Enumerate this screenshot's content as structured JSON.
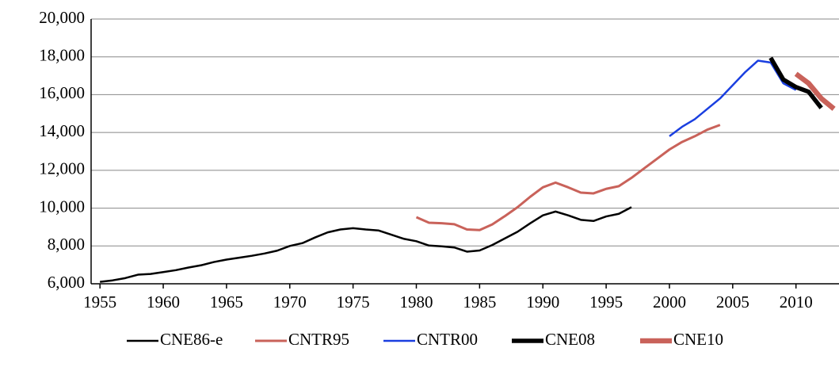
{
  "chart_data": {
    "type": "line",
    "x": [
      1955,
      1956,
      1957,
      1958,
      1959,
      1960,
      1961,
      1962,
      1963,
      1964,
      1965,
      1966,
      1967,
      1968,
      1969,
      1970,
      1971,
      1972,
      1973,
      1974,
      1975,
      1976,
      1977,
      1978,
      1979,
      1980,
      1981,
      1982,
      1983,
      1984,
      1985,
      1986,
      1987,
      1988,
      1989,
      1990,
      1991,
      1992,
      1993,
      1994,
      1995,
      1996,
      1997,
      1998,
      1999,
      2000,
      2001,
      2002,
      2003,
      2004,
      2005,
      2006,
      2007,
      2008,
      2009,
      2010,
      2011,
      2012,
      2013
    ],
    "series": [
      {
        "name": "CNE86-e",
        "color": "#000000",
        "values": [
          6100,
          6180,
          6300,
          6480,
          6520,
          6620,
          6720,
          6860,
          6980,
          7150,
          7280,
          7380,
          7480,
          7600,
          7750,
          8000,
          8150,
          8450,
          8720,
          8870,
          8940,
          8870,
          8820,
          8600,
          8380,
          8250,
          8020,
          7980,
          7920,
          7700,
          7760,
          8050,
          8400,
          8750,
          9200,
          9620,
          9820,
          9620,
          9380,
          9320,
          9560,
          9700,
          10050,
          null,
          null,
          null,
          null,
          null,
          null,
          null,
          null,
          null,
          null,
          null,
          null,
          null,
          null,
          null,
          null
        ]
      },
      {
        "name": "CNTR95",
        "color": "#c9625a",
        "values": [
          null,
          null,
          null,
          null,
          null,
          null,
          null,
          null,
          null,
          null,
          null,
          null,
          null,
          null,
          null,
          null,
          null,
          null,
          null,
          null,
          null,
          null,
          null,
          null,
          null,
          9520,
          9230,
          9200,
          9150,
          8870,
          8840,
          9140,
          9580,
          10050,
          10600,
          11100,
          11350,
          11100,
          10820,
          10780,
          11020,
          11160,
          11600,
          12100,
          12600,
          13100,
          13500,
          13800,
          14150,
          14400,
          null,
          null,
          null,
          null,
          null,
          null,
          null,
          null,
          null
        ]
      },
      {
        "name": "CNTR00",
        "color": "#1a3fe0",
        "values": [
          null,
          null,
          null,
          null,
          null,
          null,
          null,
          null,
          null,
          null,
          null,
          null,
          null,
          null,
          null,
          null,
          null,
          null,
          null,
          null,
          null,
          null,
          null,
          null,
          null,
          null,
          null,
          null,
          null,
          null,
          null,
          null,
          null,
          null,
          null,
          null,
          null,
          null,
          null,
          null,
          null,
          null,
          null,
          null,
          null,
          13800,
          14300,
          14700,
          15250,
          15800,
          16500,
          17200,
          17800,
          17700,
          16600,
          16250,
          null,
          null,
          null
        ]
      },
      {
        "name": "CNE08",
        "color": "#000000",
        "values": [
          null,
          null,
          null,
          null,
          null,
          null,
          null,
          null,
          null,
          null,
          null,
          null,
          null,
          null,
          null,
          null,
          null,
          null,
          null,
          null,
          null,
          null,
          null,
          null,
          null,
          null,
          null,
          null,
          null,
          null,
          null,
          null,
          null,
          null,
          null,
          null,
          null,
          null,
          null,
          null,
          null,
          null,
          null,
          null,
          null,
          null,
          null,
          null,
          null,
          null,
          null,
          null,
          null,
          17950,
          16800,
          16400,
          16150,
          15300,
          null
        ]
      },
      {
        "name": "CNE10",
        "color": "#c9625a",
        "values": [
          null,
          null,
          null,
          null,
          null,
          null,
          null,
          null,
          null,
          null,
          null,
          null,
          null,
          null,
          null,
          null,
          null,
          null,
          null,
          null,
          null,
          null,
          null,
          null,
          null,
          null,
          null,
          null,
          null,
          null,
          null,
          null,
          null,
          null,
          null,
          null,
          null,
          null,
          null,
          null,
          null,
          null,
          null,
          null,
          null,
          null,
          null,
          null,
          null,
          null,
          null,
          null,
          null,
          null,
          null,
          17100,
          16600,
          15800,
          15250
        ]
      }
    ],
    "xlim": [
      1954.3,
      2013.4
    ],
    "xticks": [
      1955,
      1960,
      1965,
      1970,
      1975,
      1980,
      1985,
      1990,
      1995,
      2000,
      2005,
      2010
    ],
    "ylim": [
      6000,
      20000
    ],
    "yticks": [
      {
        "value": 6000,
        "label": "6,000"
      },
      {
        "value": 8000,
        "label": "8,000"
      },
      {
        "value": 10000,
        "label": "10,000"
      },
      {
        "value": 12000,
        "label": "12,000"
      },
      {
        "value": 14000,
        "label": "14,000"
      },
      {
        "value": 16000,
        "label": "16,000"
      },
      {
        "value": 18000,
        "label": "18,000"
      },
      {
        "value": 20000,
        "label": "20,000"
      }
    ],
    "grid": true,
    "legend": "bottom"
  }
}
